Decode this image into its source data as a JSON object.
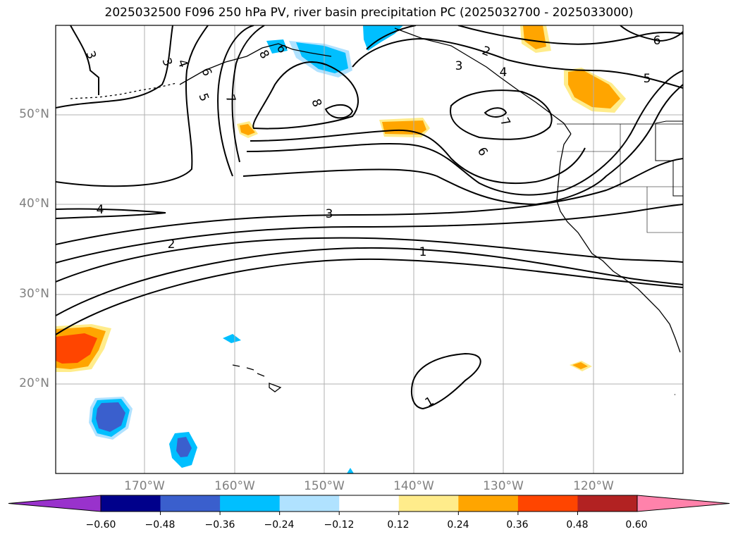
{
  "title": "2025032500 F096 250 hPa PV, river basin precipitation PC (2025032700 - 2025033000)",
  "lat_labels": [
    "50°N",
    "40°N",
    "30°N",
    "20°N"
  ],
  "lon_labels": [
    "170°W",
    "160°W",
    "150°W",
    "140°W",
    "130°W",
    "120°W"
  ],
  "contour_labels": [
    "3",
    "3",
    "4",
    "5",
    "6",
    "7",
    "8",
    "8",
    "6",
    "2",
    "3",
    "4",
    "7",
    "6",
    "6",
    "5",
    "4",
    "3",
    "2",
    "1",
    "1",
    "1"
  ],
  "colorbar": {
    "ticks": [
      "−0.60",
      "−0.48",
      "−0.36",
      "−0.24",
      "−0.12",
      "0.12",
      "0.24",
      "0.36",
      "0.48",
      "0.60"
    ],
    "colors": [
      "#9932cc",
      "#00008b",
      "#3a5fcd",
      "#00bfff",
      "#b0e2ff",
      "#ffffff",
      "#ffec8b",
      "#ffa500",
      "#ff4500",
      "#b22222",
      "#ff82ab"
    ]
  }
}
